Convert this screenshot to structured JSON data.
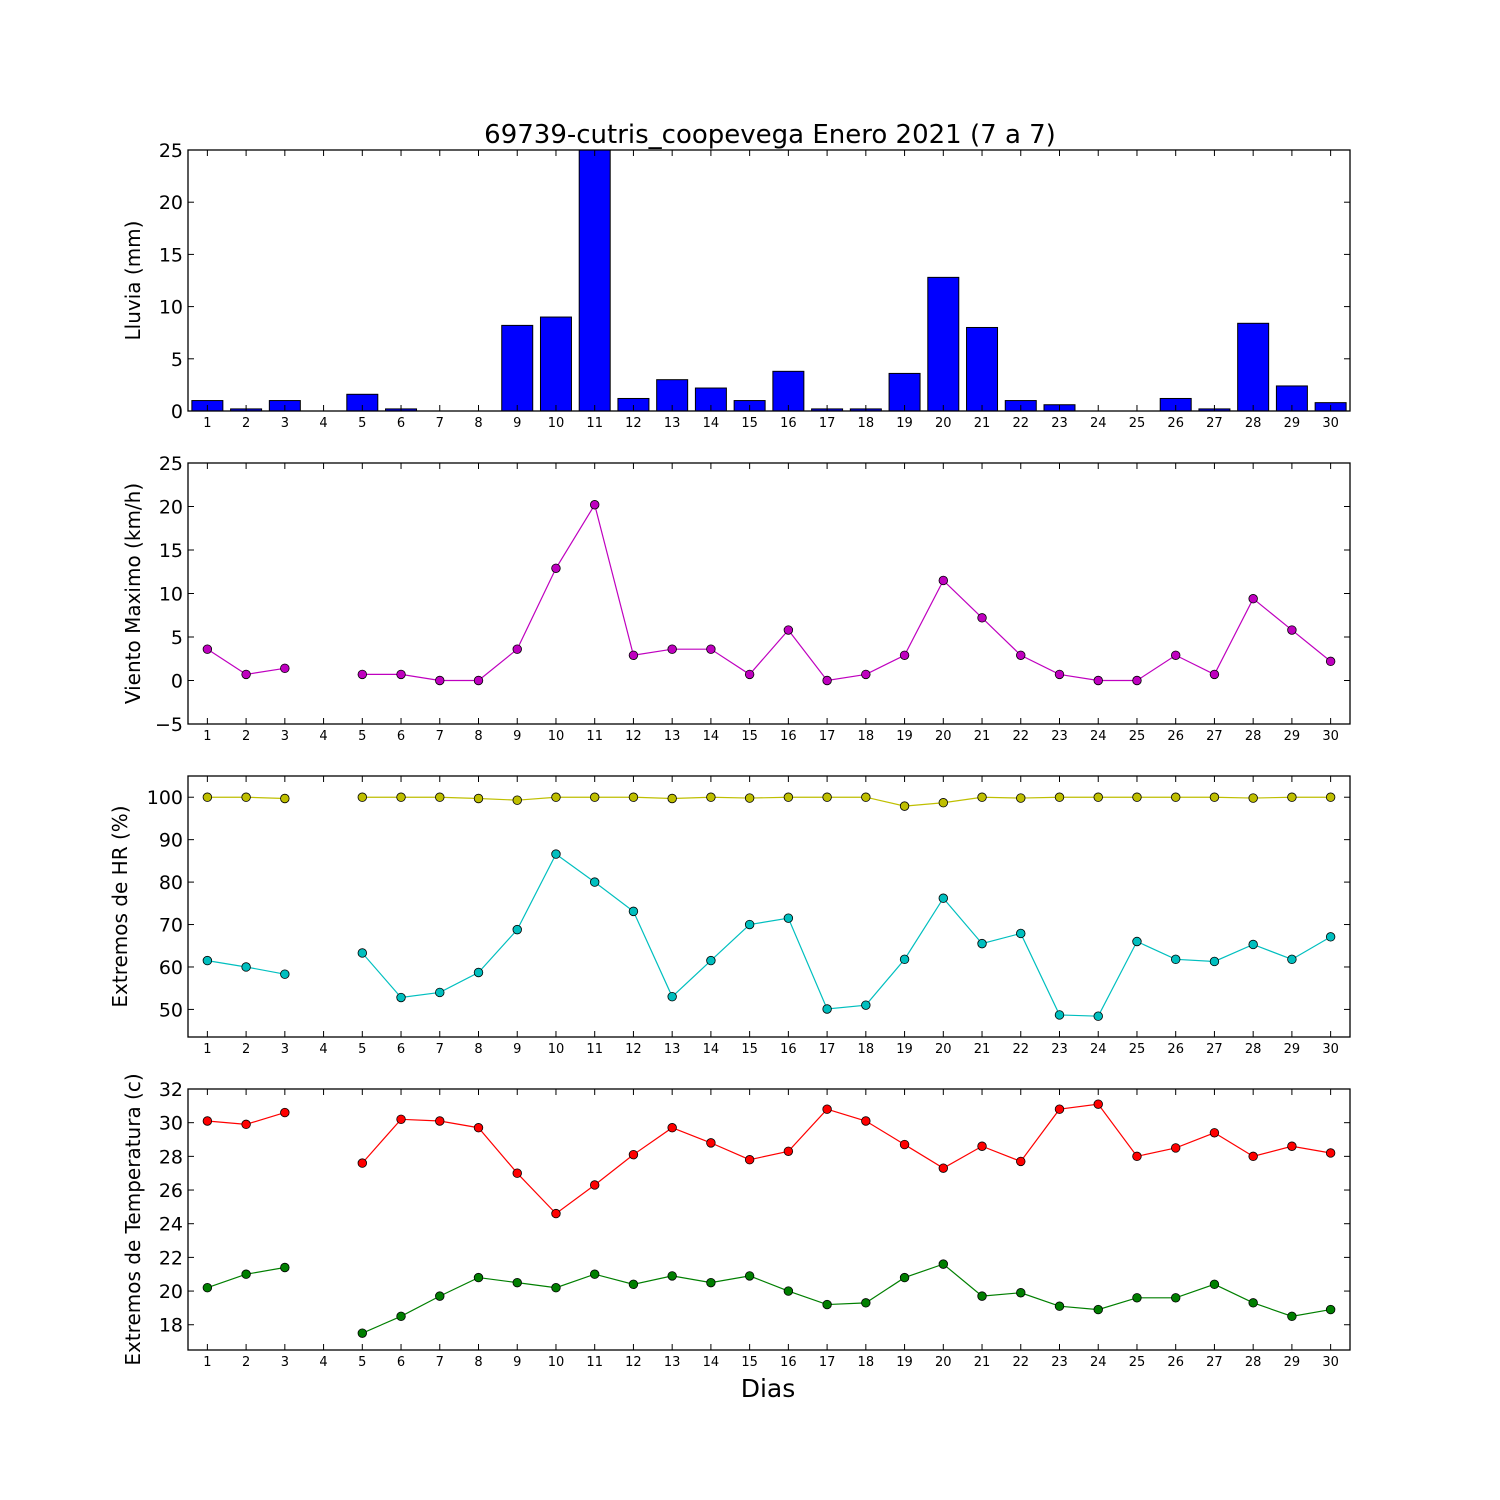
{
  "title": "69739-cutris_coopevega Enero 2021  (7 a 7)",
  "xlabel": "Dias",
  "chart_data": [
    {
      "type": "bar",
      "ylabel": "Lluvia (mm)",
      "ylim": [
        0,
        25
      ],
      "yticks": [
        0,
        5,
        10,
        15,
        20,
        25
      ],
      "xlim": [
        0.5,
        30.5
      ],
      "xticks": [
        1,
        2,
        3,
        4,
        5,
        6,
        7,
        8,
        9,
        10,
        11,
        12,
        13,
        14,
        15,
        16,
        17,
        18,
        19,
        20,
        21,
        22,
        23,
        24,
        25,
        26,
        27,
        28,
        29,
        30
      ],
      "series": [
        {
          "color": "#0000ff",
          "x": [
            1,
            2,
            3,
            4,
            5,
            6,
            7,
            8,
            9,
            10,
            11,
            12,
            13,
            14,
            15,
            16,
            17,
            18,
            19,
            20,
            21,
            22,
            23,
            24,
            25,
            26,
            27,
            28,
            29,
            30
          ],
          "values": [
            1.0,
            0.2,
            1.0,
            0.0,
            1.6,
            0.2,
            0.0,
            0.0,
            8.2,
            9.0,
            25.0,
            1.2,
            3.0,
            2.2,
            1.0,
            3.8,
            0.2,
            0.2,
            3.6,
            12.8,
            8.0,
            1.0,
            0.6,
            0.0,
            0.0,
            1.2,
            0.2,
            8.4,
            2.4,
            0.8
          ]
        }
      ]
    },
    {
      "type": "line",
      "ylabel": "Viento Maximo (km/h)",
      "ylim": [
        -5,
        25
      ],
      "yticks": [
        -5,
        0,
        5,
        10,
        15,
        20,
        25
      ],
      "xlim": [
        0.5,
        30.5
      ],
      "xticks": [
        1,
        2,
        3,
        4,
        5,
        6,
        7,
        8,
        9,
        10,
        11,
        12,
        13,
        14,
        15,
        16,
        17,
        18,
        19,
        20,
        21,
        22,
        23,
        24,
        25,
        26,
        27,
        28,
        29,
        30
      ],
      "series": [
        {
          "color": "#bf00bf",
          "x": [
            1,
            2,
            3,
            4,
            5,
            6,
            7,
            8,
            9,
            10,
            11,
            12,
            13,
            14,
            15,
            16,
            17,
            18,
            19,
            20,
            21,
            22,
            23,
            24,
            25,
            26,
            27,
            28,
            29,
            30
          ],
          "values": [
            3.6,
            0.7,
            1.4,
            null,
            0.7,
            0.7,
            0.0,
            0.0,
            3.6,
            12.9,
            20.2,
            2.9,
            3.6,
            3.6,
            0.7,
            5.8,
            0.0,
            0.7,
            2.9,
            11.5,
            7.2,
            2.9,
            0.7,
            0.0,
            0.0,
            2.9,
            0.7,
            9.4,
            5.8,
            2.2
          ]
        }
      ]
    },
    {
      "type": "line",
      "ylabel": "Extremos de HR (%)",
      "ylim": [
        43.5,
        105
      ],
      "yticks": [
        50,
        60,
        70,
        80,
        90,
        100
      ],
      "xlim": [
        0.5,
        30.5
      ],
      "xticks": [
        1,
        2,
        3,
        4,
        5,
        6,
        7,
        8,
        9,
        10,
        11,
        12,
        13,
        14,
        15,
        16,
        17,
        18,
        19,
        20,
        21,
        22,
        23,
        24,
        25,
        26,
        27,
        28,
        29,
        30
      ],
      "series": [
        {
          "color": "#bfbf00",
          "x": [
            1,
            2,
            3,
            4,
            5,
            6,
            7,
            8,
            9,
            10,
            11,
            12,
            13,
            14,
            15,
            16,
            17,
            18,
            19,
            20,
            21,
            22,
            23,
            24,
            25,
            26,
            27,
            28,
            29,
            30
          ],
          "values": [
            100,
            100,
            99.7,
            null,
            100,
            100,
            100,
            99.7,
            99.3,
            100,
            100,
            100,
            99.7,
            100,
            99.8,
            100,
            100,
            100,
            97.9,
            98.7,
            100,
            99.8,
            100,
            100,
            100,
            100,
            100,
            99.8,
            100,
            100
          ]
        },
        {
          "color": "#00bfbf",
          "x": [
            1,
            2,
            3,
            4,
            5,
            6,
            7,
            8,
            9,
            10,
            11,
            12,
            13,
            14,
            15,
            16,
            17,
            18,
            19,
            20,
            21,
            22,
            23,
            24,
            25,
            26,
            27,
            28,
            29,
            30
          ],
          "values": [
            61.5,
            60.0,
            58.3,
            null,
            63.3,
            52.8,
            54.0,
            58.7,
            68.8,
            86.6,
            80.0,
            73.1,
            53.0,
            61.5,
            70.0,
            71.5,
            50.1,
            51.0,
            61.8,
            76.2,
            65.5,
            67.9,
            48.7,
            48.4,
            66.0,
            61.8,
            61.3,
            65.3,
            61.8,
            67.1
          ]
        }
      ]
    },
    {
      "type": "line",
      "ylabel": "Extremos de Temperatura (c)",
      "ylim": [
        16.5,
        32
      ],
      "yticks": [
        18,
        20,
        22,
        24,
        26,
        28,
        30,
        32
      ],
      "xlim": [
        0.5,
        30.5
      ],
      "xticks": [
        1,
        2,
        3,
        4,
        5,
        6,
        7,
        8,
        9,
        10,
        11,
        12,
        13,
        14,
        15,
        16,
        17,
        18,
        19,
        20,
        21,
        22,
        23,
        24,
        25,
        26,
        27,
        28,
        29,
        30
      ],
      "series": [
        {
          "color": "#ff0000",
          "x": [
            1,
            2,
            3,
            4,
            5,
            6,
            7,
            8,
            9,
            10,
            11,
            12,
            13,
            14,
            15,
            16,
            17,
            18,
            19,
            20,
            21,
            22,
            23,
            24,
            25,
            26,
            27,
            28,
            29,
            30
          ],
          "values": [
            30.1,
            29.9,
            30.6,
            null,
            27.6,
            30.2,
            30.1,
            29.7,
            27.0,
            24.6,
            26.3,
            28.1,
            29.7,
            28.8,
            27.8,
            28.3,
            30.8,
            30.1,
            28.7,
            27.3,
            28.6,
            27.7,
            30.8,
            31.1,
            28.0,
            28.5,
            29.4,
            28.0,
            28.6,
            28.2
          ]
        },
        {
          "color": "#007f00",
          "x": [
            1,
            2,
            3,
            4,
            5,
            6,
            7,
            8,
            9,
            10,
            11,
            12,
            13,
            14,
            15,
            16,
            17,
            18,
            19,
            20,
            21,
            22,
            23,
            24,
            25,
            26,
            27,
            28,
            29,
            30
          ],
          "values": [
            20.2,
            21.0,
            21.4,
            null,
            17.5,
            18.5,
            19.7,
            20.8,
            20.5,
            20.2,
            21.0,
            20.4,
            20.9,
            20.5,
            20.9,
            20.0,
            19.2,
            19.3,
            20.8,
            21.6,
            19.7,
            19.9,
            19.1,
            18.9,
            19.6,
            19.6,
            20.4,
            19.3,
            18.5,
            18.9
          ]
        }
      ]
    }
  ]
}
